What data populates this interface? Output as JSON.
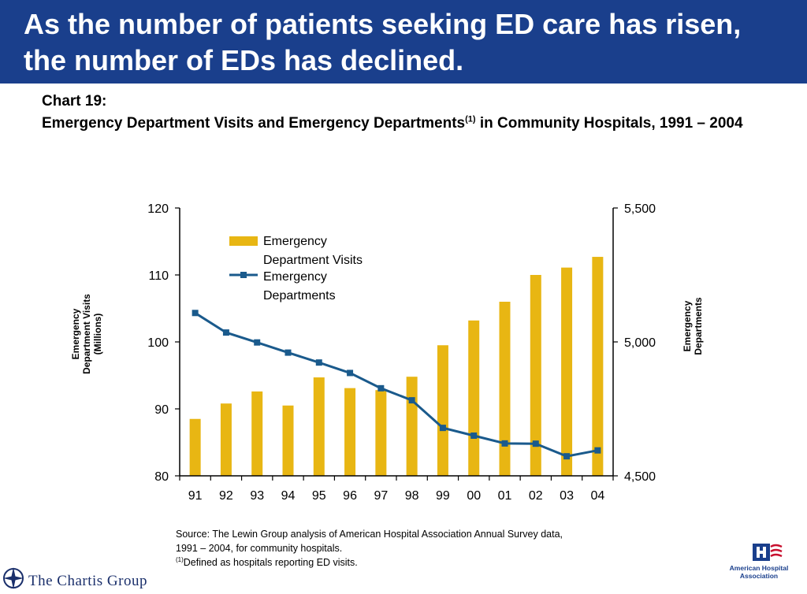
{
  "banner": {
    "title": "As the number of patients seeking ED care has risen, the number of EDs has declined."
  },
  "heading": {
    "label": "Chart 19:",
    "title_main": "Emergency Department Visits and Emergency Departments",
    "title_sup": "(1)",
    "title_rest": " in Community Hospitals, 1991 – 2004"
  },
  "chart_data": {
    "type": "bar",
    "categories": [
      "91",
      "92",
      "93",
      "94",
      "95",
      "96",
      "97",
      "98",
      "99",
      "00",
      "01",
      "02",
      "03",
      "04"
    ],
    "series": [
      {
        "name": "Emergency Department Visits",
        "type": "bar",
        "axis": "left",
        "color": "#e8b613",
        "values": [
          88.5,
          90.8,
          92.6,
          90.5,
          94.7,
          93.1,
          92.8,
          94.8,
          99.5,
          103.2,
          106.0,
          110.0,
          111.1,
          112.7
        ]
      },
      {
        "name": "Emergency Departments",
        "type": "line",
        "axis": "right",
        "color": "#1a5a8c",
        "values": [
          5108,
          5035,
          4998,
          4960,
          4923,
          4884,
          4827,
          4782,
          4679,
          4650,
          4621,
          4620,
          4573,
          4595
        ]
      }
    ],
    "y_left": {
      "label": "Emergency Department Visits (Millions)",
      "range": [
        80,
        120
      ],
      "ticks": [
        "80",
        "90",
        "100",
        "110",
        "120"
      ]
    },
    "y_right": {
      "label": "Emergency Departments",
      "range": [
        4500,
        5500
      ],
      "ticks": [
        "4,500",
        "5,000",
        "5,500"
      ]
    },
    "legend_position": "top-left",
    "grid": false
  },
  "footer": {
    "source_text": "Source: The Lewin Group analysis of American Hospital Association Annual Survey data, 1991 – 2004, for community hospitals.",
    "footnote_sup": "(1)",
    "footnote_text": "Defined as hospitals reporting ED visits.",
    "left_logo_text": "The Chartis Group",
    "right_logo_text": "American Hospital Association"
  },
  "colors": {
    "banner": "#1a3f8c",
    "bar": "#e8b613",
    "line": "#1a5a8c"
  }
}
